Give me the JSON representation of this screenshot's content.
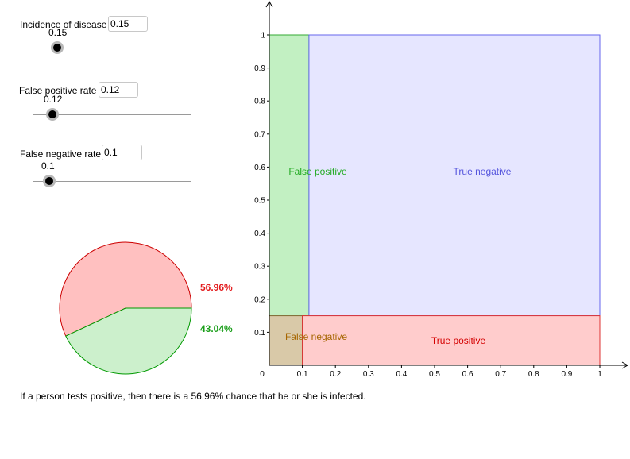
{
  "controls": {
    "incidence": {
      "label": "Incidence of disease",
      "value": "0.15",
      "slider_text": "0.15",
      "slider_value": 0.15
    },
    "false_positive": {
      "label": "False positive rate",
      "value": "0.12",
      "slider_text": "0.12",
      "slider_value": 0.12
    },
    "false_negative": {
      "label": "False negative rate",
      "value": "0.1",
      "slider_text": "0.1",
      "slider_value": 0.1
    }
  },
  "pie": {
    "slices": [
      {
        "label": "56.96%",
        "value": 56.96,
        "fill": "#ffc0c0",
        "stroke": "#cc0000",
        "label_color": "#e31a1c"
      },
      {
        "label": "43.04%",
        "value": 43.04,
        "fill": "#ccf0cc",
        "stroke": "#009900",
        "label_color": "#1a9e1a"
      }
    ]
  },
  "chart_data": {
    "type": "area",
    "x_ticks": [
      "0",
      "0.1",
      "0.2",
      "0.3",
      "0.4",
      "0.5",
      "0.6",
      "0.7",
      "0.8",
      "0.9",
      "1"
    ],
    "y_ticks": [
      "0.1",
      "0.2",
      "0.3",
      "0.4",
      "0.5",
      "0.6",
      "0.7",
      "0.8",
      "0.9",
      "1"
    ],
    "xlim": [
      0,
      1
    ],
    "ylim": [
      0,
      1
    ],
    "regions": [
      {
        "name": "False positive",
        "x": [
          0,
          0.12
        ],
        "y": [
          0.15,
          1
        ],
        "fill": "#c2f0c2",
        "stroke": "#33aa33",
        "label_color": "#22aa22"
      },
      {
        "name": "True negative",
        "x": [
          0.12,
          1
        ],
        "y": [
          0.15,
          1
        ],
        "fill": "#e6e6ff",
        "stroke": "#6666ee",
        "label_color": "#5555dd"
      },
      {
        "name": "False negative",
        "x": [
          0,
          0.1
        ],
        "y": [
          0,
          0.15
        ],
        "fill": "#d9c9a8",
        "stroke": "#8a6a3a",
        "label_color": "#a66600"
      },
      {
        "name": "True positive",
        "x": [
          0.1,
          1
        ],
        "y": [
          0,
          0.15
        ],
        "fill": "#ffcccc",
        "stroke": "#dd3333",
        "label_color": "#d40000"
      }
    ]
  },
  "result_text": "If a person tests positive, then there is a 56.96% chance that he or she is infected."
}
